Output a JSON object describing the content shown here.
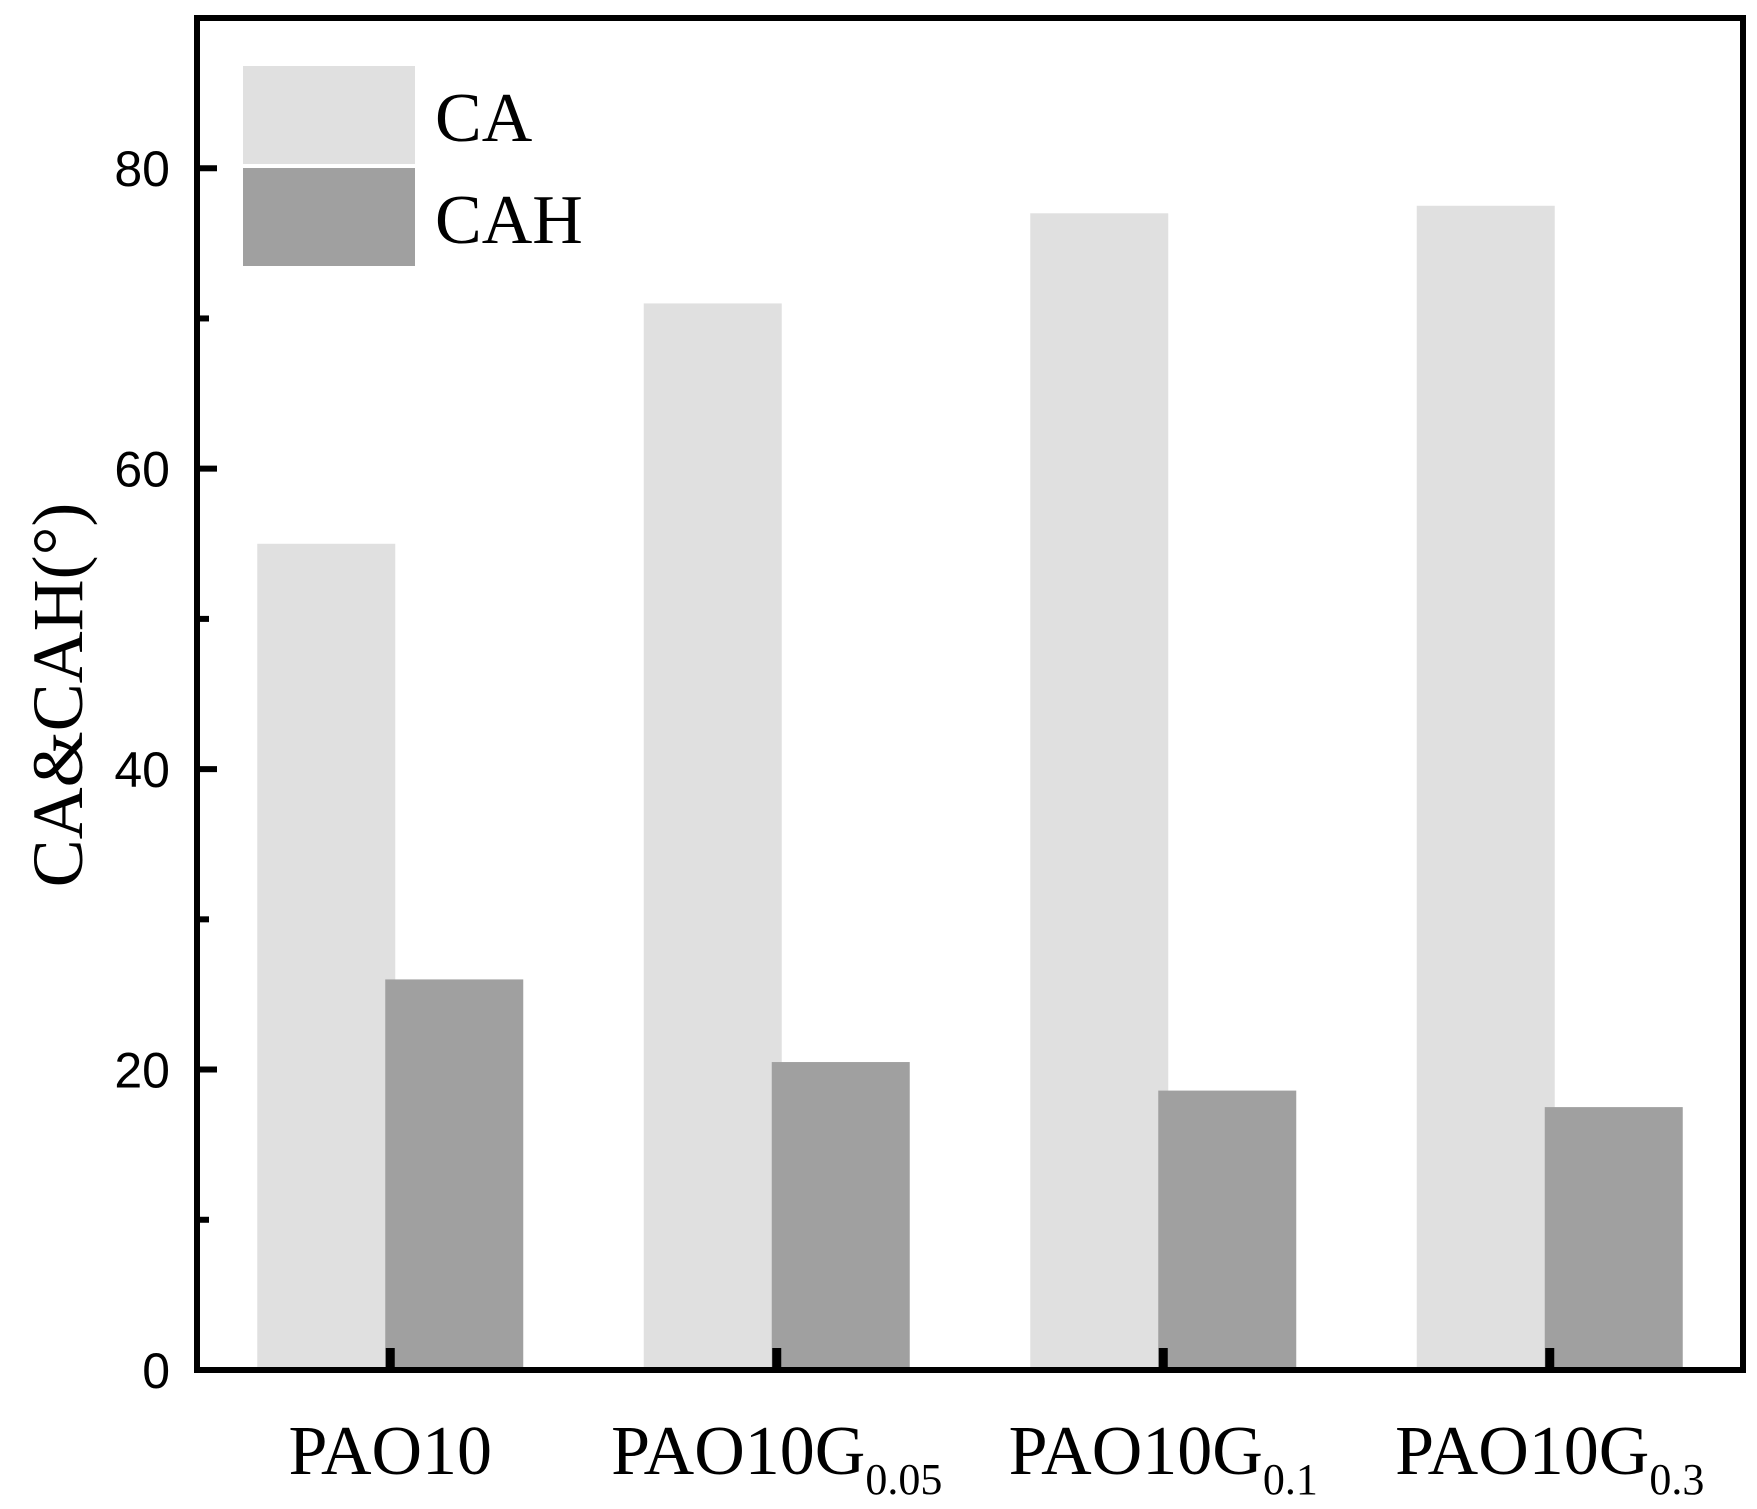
{
  "chart_data": {
    "type": "bar",
    "title": "",
    "xlabel": "",
    "ylabel": "CA&CAH(°)",
    "ylim": [
      0,
      90
    ],
    "yticks": [
      0,
      20,
      40,
      60,
      80
    ],
    "categories": [
      {
        "main": "PAO10",
        "sub": ""
      },
      {
        "main": "PAO10G",
        "sub": "0.05"
      },
      {
        "main": "PAO10G",
        "sub": "0.1"
      },
      {
        "main": "PAO10G",
        "sub": "0.3"
      }
    ],
    "series": [
      {
        "name": "CA",
        "color": "#e0e0e0",
        "values": [
          55,
          71,
          77,
          77.5
        ]
      },
      {
        "name": "CAH",
        "color": "#a0a0a0",
        "values": [
          26,
          20.5,
          18.6,
          17.5
        ]
      }
    ],
    "legend": "top-left",
    "grid": false
  }
}
